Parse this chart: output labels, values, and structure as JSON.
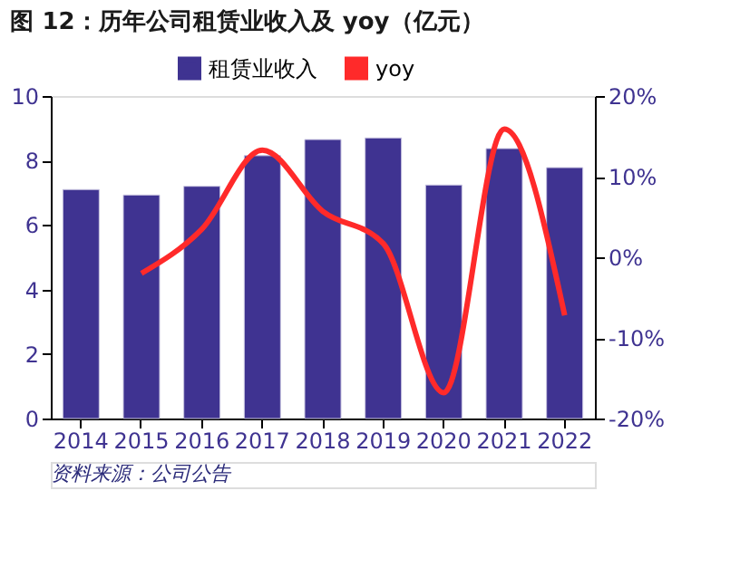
{
  "chart_data": {
    "type": "bar",
    "title": "图 12：历年公司租赁业收入及 yoy（亿元）",
    "categories": [
      "2014",
      "2015",
      "2016",
      "2017",
      "2018",
      "2019",
      "2020",
      "2021",
      "2022"
    ],
    "series": [
      {
        "name": "租赁业收入",
        "color": "#3f3391",
        "values": [
          7.1,
          6.93,
          7.2,
          8.15,
          8.65,
          8.7,
          7.24,
          8.37,
          7.78
        ]
      },
      {
        "name": "yoy",
        "type": "line",
        "axis": "y2",
        "color": "#ff2a2a",
        "values": [
          null,
          -2.0,
          3.5,
          13.3,
          5.7,
          1.7,
          -16.8,
          15.9,
          -7.2
        ]
      }
    ],
    "ylim": [
      0,
      10
    ],
    "yticks": [
      0,
      2,
      4,
      6,
      8,
      10
    ],
    "y2lim": [
      -20,
      20
    ],
    "y2ticks": [
      {
        "value": -20,
        "label": "-20%"
      },
      {
        "value": -10,
        "label": "-10%"
      },
      {
        "value": 0,
        "label": "0%"
      },
      {
        "value": 10,
        "label": "10%"
      },
      {
        "value": 20,
        "label": "20%"
      }
    ],
    "legend": "top",
    "grid": false,
    "marker": "none",
    "line_style": "solid",
    "annotations": [
      "资料来源：公司公告"
    ]
  }
}
